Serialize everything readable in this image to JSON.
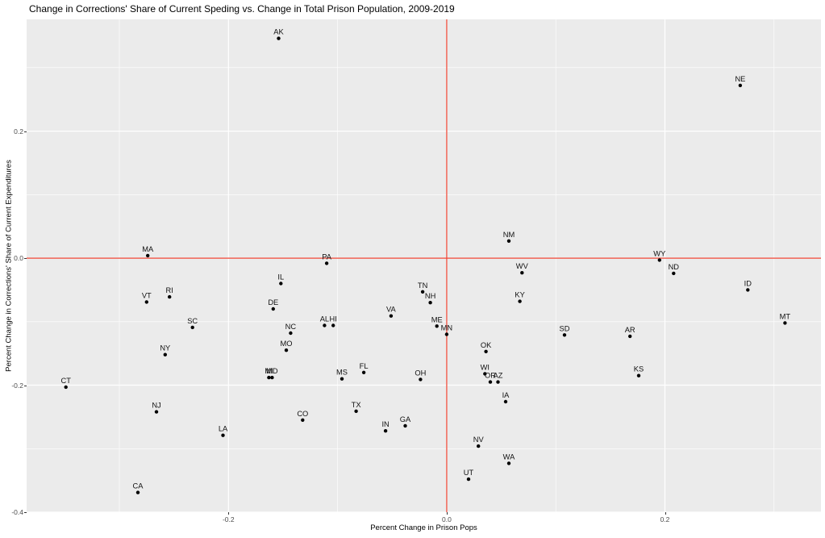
{
  "title": "Change in Corrections' Share of Current Speding vs. Change in Total Prison Population, 2009-2019",
  "axes": {
    "x_label": "Percent Change in Prison Pops",
    "y_label": "Percent Change in Corrections' Share of Current Expenditures",
    "x_ticks": [
      -0.2,
      0.0,
      0.2
    ],
    "x_tick_labels": [
      "-0.2",
      "0.0",
      "0.2"
    ],
    "x_minor": [
      -0.3,
      -0.1,
      0.1,
      0.3
    ],
    "y_ticks": [
      0.2,
      0.0,
      -0.2,
      -0.4
    ],
    "y_tick_labels": [
      "0.2",
      "0.0",
      "-0.2",
      "-0.4"
    ],
    "y_minor": [
      0.3,
      0.1,
      -0.1,
      -0.3
    ]
  },
  "colors": {
    "panel_bg": "#EBEBEB",
    "grid": "#FFFFFF",
    "point": "#000000",
    "label_text": "#111111",
    "ref_line": "#EE4433",
    "tick_text": "#4D4D4D",
    "title_text": "#000000"
  },
  "chart_data": {
    "type": "scatter",
    "title": "Change in Corrections' Share of Current Speding vs. Change in Total Prison Population, 2009-2019",
    "xlabel": "Percent Change in Prison Pops",
    "ylabel": "Percent Change in Corrections' Share of Current Expenditures",
    "xlim": [
      -0.385,
      0.343
    ],
    "ylim": [
      -0.4,
      0.376
    ],
    "grid": true,
    "legend": false,
    "ref_lines": {
      "vline_x": 0.0,
      "hline_y": 0.0
    },
    "points": [
      {
        "label": "AK",
        "x": -0.154,
        "y": 0.346
      },
      {
        "label": "NE",
        "x": 0.269,
        "y": 0.272
      },
      {
        "label": "NM",
        "x": 0.057,
        "y": 0.027
      },
      {
        "label": "MA",
        "x": -0.274,
        "y": 0.004
      },
      {
        "label": "WY",
        "x": 0.195,
        "y": -0.003
      },
      {
        "label": "PA",
        "x": -0.11,
        "y": -0.008
      },
      {
        "label": "WV",
        "x": 0.069,
        "y": -0.023
      },
      {
        "label": "ND",
        "x": 0.208,
        "y": -0.024
      },
      {
        "label": "IL",
        "x": -0.152,
        "y": -0.04
      },
      {
        "label": "ID",
        "x": 0.276,
        "y": -0.05
      },
      {
        "label": "TN",
        "x": -0.022,
        "y": -0.053
      },
      {
        "label": "RI",
        "x": -0.254,
        "y": -0.061
      },
      {
        "label": "KY",
        "x": 0.067,
        "y": -0.068
      },
      {
        "label": "VT",
        "x": -0.275,
        "y": -0.069
      },
      {
        "label": "NH",
        "x": -0.015,
        "y": -0.07
      },
      {
        "label": "DE",
        "x": -0.159,
        "y": -0.08
      },
      {
        "label": "VA",
        "x": -0.051,
        "y": -0.091
      },
      {
        "label": "MT",
        "x": 0.31,
        "y": -0.102
      },
      {
        "label": "AL",
        "x": -0.112,
        "y": -0.106
      },
      {
        "label": "HI",
        "x": -0.104,
        "y": -0.106
      },
      {
        "label": "ME",
        "x": -0.009,
        "y": -0.107
      },
      {
        "label": "SC",
        "x": -0.233,
        "y": -0.109
      },
      {
        "label": "NC",
        "x": -0.143,
        "y": -0.118
      },
      {
        "label": "MN",
        "x": 0.0,
        "y": -0.12
      },
      {
        "label": "SD",
        "x": 0.108,
        "y": -0.121
      },
      {
        "label": "AR",
        "x": 0.168,
        "y": -0.123
      },
      {
        "label": "MO",
        "x": -0.147,
        "y": -0.145
      },
      {
        "label": "OK",
        "x": 0.036,
        "y": -0.147
      },
      {
        "label": "NY",
        "x": -0.258,
        "y": -0.152
      },
      {
        "label": "FL",
        "x": -0.076,
        "y": -0.18
      },
      {
        "label": "WI",
        "x": 0.035,
        "y": -0.182
      },
      {
        "label": "KS",
        "x": 0.176,
        "y": -0.185
      },
      {
        "label": "MI",
        "x": -0.163,
        "y": -0.188
      },
      {
        "label": "MD",
        "x": -0.16,
        "y": -0.188
      },
      {
        "label": "MS",
        "x": -0.096,
        "y": -0.19
      },
      {
        "label": "OH",
        "x": -0.024,
        "y": -0.191
      },
      {
        "label": "OR",
        "x": 0.04,
        "y": -0.195
      },
      {
        "label": "AZ",
        "x": 0.047,
        "y": -0.195
      },
      {
        "label": "CT",
        "x": -0.349,
        "y": -0.203
      },
      {
        "label": "IA",
        "x": 0.054,
        "y": -0.226
      },
      {
        "label": "TX",
        "x": -0.083,
        "y": -0.241
      },
      {
        "label": "NJ",
        "x": -0.266,
        "y": -0.242
      },
      {
        "label": "CO",
        "x": -0.132,
        "y": -0.255
      },
      {
        "label": "GA",
        "x": -0.038,
        "y": -0.264
      },
      {
        "label": "IN",
        "x": -0.056,
        "y": -0.272
      },
      {
        "label": "LA",
        "x": -0.205,
        "y": -0.279
      },
      {
        "label": "NV",
        "x": 0.029,
        "y": -0.296
      },
      {
        "label": "WA",
        "x": 0.057,
        "y": -0.323
      },
      {
        "label": "UT",
        "x": 0.02,
        "y": -0.348
      },
      {
        "label": "CA",
        "x": -0.283,
        "y": -0.369
      }
    ]
  }
}
